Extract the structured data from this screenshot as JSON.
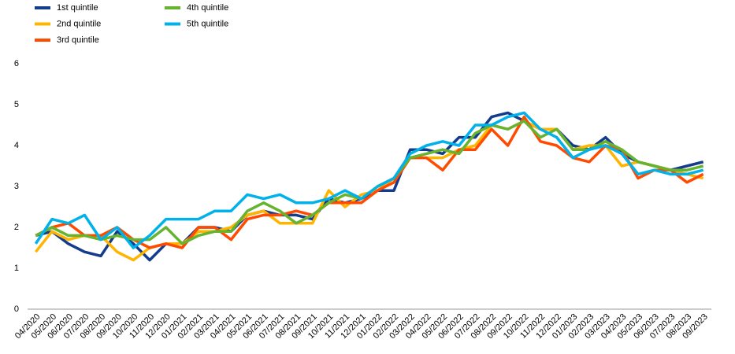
{
  "chart_data": {
    "type": "line",
    "categories": [
      "04/2020",
      "05/2020",
      "06/2020",
      "07/2020",
      "08/2020",
      "09/2020",
      "10/2020",
      "11/2020",
      "12/2020",
      "01/2021",
      "02/2021",
      "03/2021",
      "04/2021",
      "05/2021",
      "06/2021",
      "07/2021",
      "08/2021",
      "09/2021",
      "10/2021",
      "11/2021",
      "12/2021",
      "01/2022",
      "02/2022",
      "03/2022",
      "04/2022",
      "05/2022",
      "06/2022",
      "07/2022",
      "08/2022",
      "09/2022",
      "10/2022",
      "11/2022",
      "12/2022",
      "01/2023",
      "02/2023",
      "03/2023",
      "04/2023",
      "05/2023",
      "06/2023",
      "07/2023",
      "08/2023",
      "09/2023"
    ],
    "series": [
      {
        "name": "1st quintile",
        "color": "#143c8c",
        "values": [
          1.8,
          1.9,
          1.6,
          1.4,
          1.3,
          1.9,
          1.6,
          1.2,
          1.6,
          1.6,
          2.0,
          2.0,
          1.9,
          2.3,
          2.4,
          2.3,
          2.3,
          2.2,
          2.7,
          2.6,
          2.7,
          2.9,
          2.9,
          3.9,
          3.9,
          3.8,
          4.2,
          4.2,
          4.7,
          4.8,
          4.6,
          4.4,
          4.4,
          4.0,
          3.9,
          4.2,
          3.8,
          3.6,
          3.5,
          3.4,
          3.5,
          3.6
        ]
      },
      {
        "name": "2nd quintile",
        "color": "#ffb400",
        "values": [
          1.4,
          1.9,
          1.7,
          1.8,
          1.8,
          1.4,
          1.2,
          1.5,
          1.6,
          1.6,
          1.9,
          1.9,
          2.0,
          2.3,
          2.4,
          2.1,
          2.1,
          2.1,
          2.9,
          2.5,
          2.8,
          2.9,
          3.2,
          3.7,
          3.7,
          3.7,
          3.9,
          4.0,
          4.5,
          4.4,
          4.6,
          4.4,
          4.4,
          3.9,
          4.0,
          4.0,
          3.5,
          3.6,
          3.5,
          3.4,
          3.3,
          3.2
        ]
      },
      {
        "name": "3rd quintile",
        "color": "#ff4b00",
        "values": [
          1.8,
          2.0,
          2.1,
          1.8,
          1.8,
          2.0,
          1.7,
          1.5,
          1.6,
          1.5,
          2.0,
          2.0,
          1.7,
          2.2,
          2.3,
          2.3,
          2.4,
          2.3,
          2.6,
          2.6,
          2.6,
          2.9,
          3.1,
          3.7,
          3.7,
          3.4,
          3.9,
          3.9,
          4.4,
          4.0,
          4.7,
          4.1,
          4.0,
          3.7,
          3.6,
          4.0,
          3.9,
          3.2,
          3.4,
          3.4,
          3.1,
          3.3
        ]
      },
      {
        "name": "4th quintile",
        "color": "#65b32e",
        "values": [
          1.8,
          2.0,
          1.8,
          1.8,
          1.7,
          1.8,
          1.7,
          1.7,
          2.0,
          1.6,
          1.8,
          1.9,
          1.9,
          2.4,
          2.6,
          2.4,
          2.1,
          2.3,
          2.6,
          2.8,
          2.7,
          3.0,
          3.2,
          3.7,
          3.8,
          3.9,
          3.8,
          4.3,
          4.5,
          4.4,
          4.6,
          4.2,
          4.4,
          3.9,
          3.9,
          4.1,
          3.9,
          3.6,
          3.5,
          3.4,
          3.4,
          3.5
        ]
      },
      {
        "name": "5th quintile",
        "color": "#00b1ea",
        "values": [
          1.6,
          2.2,
          2.1,
          2.3,
          1.7,
          2.0,
          1.5,
          1.8,
          2.2,
          2.2,
          2.2,
          2.4,
          2.4,
          2.8,
          2.7,
          2.8,
          2.6,
          2.6,
          2.7,
          2.9,
          2.7,
          3.0,
          3.2,
          3.8,
          4.0,
          4.1,
          4.0,
          4.5,
          4.5,
          4.7,
          4.8,
          4.4,
          4.2,
          3.7,
          3.9,
          4.0,
          3.8,
          3.3,
          3.4,
          3.3,
          3.3,
          3.4
        ]
      }
    ],
    "ylim": [
      0,
      6
    ],
    "yticks": [
      0,
      1,
      2,
      3,
      4,
      5,
      6
    ],
    "grid": false,
    "legend": "top-left"
  }
}
